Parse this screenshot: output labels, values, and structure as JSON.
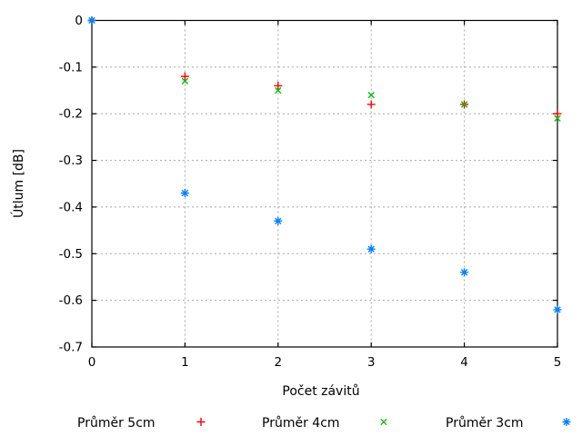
{
  "chart_data": {
    "type": "scatter",
    "title": "",
    "xlabel": "Počet závitů",
    "ylabel": "Útlum [dB]",
    "xlim": [
      0,
      5
    ],
    "ylim": [
      -0.7,
      0
    ],
    "xticks": [
      0,
      1,
      2,
      3,
      4,
      5
    ],
    "xtick_labels": [
      "0",
      "1",
      "2",
      "3",
      "4",
      "5"
    ],
    "yticks": [
      0,
      -0.1,
      -0.2,
      -0.3,
      -0.4,
      -0.5,
      -0.6,
      -0.7
    ],
    "ytick_labels": [
      "0",
      "-0.1",
      "-0.2",
      "-0.3",
      "-0.4",
      "-0.5",
      "-0.6",
      "-0.7"
    ],
    "grid": true,
    "grid_color": "#a8a8a8",
    "border_color": "#000000",
    "legend_position": "bottom-center-below-plot",
    "x": [
      0,
      1,
      2,
      3,
      4,
      5
    ],
    "series": [
      {
        "name": "Průměr 5cm",
        "marker": "plus",
        "color": "#ff0000",
        "values": [
          0,
          -0.12,
          -0.14,
          -0.18,
          -0.18,
          -0.2
        ]
      },
      {
        "name": "Průměr 4cm",
        "marker": "cross",
        "color": "#00c000",
        "values": [
          0,
          -0.13,
          -0.15,
          -0.16,
          -0.18,
          -0.21
        ]
      },
      {
        "name": "Průměr 3cm",
        "marker": "asterisk",
        "color": "#0080ff",
        "values": [
          0,
          -0.37,
          -0.43,
          -0.49,
          -0.54,
          -0.62
        ]
      }
    ]
  }
}
